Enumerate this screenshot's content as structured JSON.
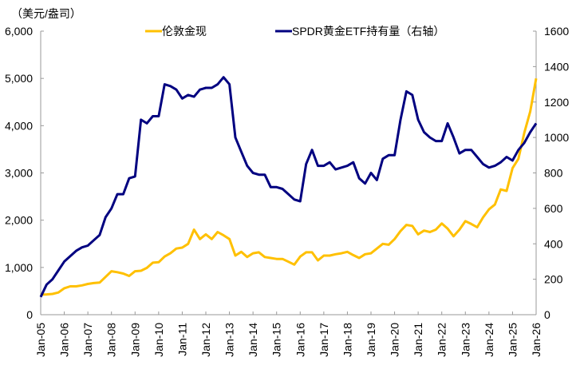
{
  "chart_data": {
    "type": "line",
    "left_unit_label": "（美元/盎司）",
    "y_left": {
      "ylim": [
        0,
        6000
      ],
      "ticks": [
        "0",
        "1,000",
        "2,000",
        "3,000",
        "4,000",
        "5,000",
        "6,000"
      ]
    },
    "y_right": {
      "ylim": [
        0,
        1600
      ],
      "ticks": [
        "0",
        "200",
        "400",
        "600",
        "800",
        "1000",
        "1200",
        "1400",
        "1600"
      ]
    },
    "x_ticks": [
      "Jan-05",
      "Jan-06",
      "Jan-07",
      "Jan-08",
      "Jan-09",
      "Jan-10",
      "Jan-11",
      "Jan-12",
      "Jan-13",
      "Jan-14",
      "Jan-15",
      "Jan-16",
      "Jan-17",
      "Jan-18",
      "Jan-19",
      "Jan-20",
      "Jan-21",
      "Jan-22",
      "Jan-23",
      "Jan-24",
      "Jan-25",
      "Jan-26"
    ],
    "legend_position": "top",
    "grid": false,
    "series": [
      {
        "name": "伦敦金现",
        "axis": "left",
        "color": "#FFC000",
        "values": [
          425,
          430,
          440,
          470,
          560,
          600,
          600,
          620,
          650,
          670,
          680,
          800,
          920,
          900,
          870,
          820,
          920,
          930,
          990,
          1100,
          1110,
          1230,
          1300,
          1400,
          1420,
          1500,
          1800,
          1600,
          1700,
          1600,
          1750,
          1680,
          1600,
          1250,
          1330,
          1220,
          1300,
          1320,
          1220,
          1200,
          1180,
          1180,
          1120,
          1060,
          1230,
          1320,
          1320,
          1150,
          1250,
          1250,
          1280,
          1300,
          1330,
          1260,
          1200,
          1280,
          1300,
          1400,
          1500,
          1480,
          1600,
          1770,
          1900,
          1880,
          1700,
          1780,
          1750,
          1800,
          1930,
          1820,
          1660,
          1800,
          1980,
          1920,
          1850,
          2060,
          2230,
          2330,
          2650,
          2620,
          3100,
          3300,
          3850,
          4300,
          5000
        ]
      },
      {
        "name": "SPDR黄金ETF持有量（右轴）",
        "axis": "right",
        "color": "#000080",
        "values": [
          100,
          170,
          200,
          250,
          300,
          330,
          360,
          380,
          390,
          420,
          450,
          550,
          600,
          680,
          680,
          770,
          780,
          1100,
          1080,
          1120,
          1120,
          1300,
          1290,
          1270,
          1220,
          1240,
          1230,
          1270,
          1280,
          1280,
          1300,
          1340,
          1300,
          1000,
          920,
          840,
          800,
          790,
          790,
          720,
          720,
          710,
          680,
          650,
          640,
          850,
          930,
          840,
          840,
          860,
          820,
          830,
          840,
          860,
          770,
          740,
          800,
          760,
          880,
          900,
          900,
          1100,
          1260,
          1240,
          1100,
          1030,
          1000,
          980,
          980,
          1080,
          1000,
          910,
          930,
          930,
          890,
          850,
          830,
          840,
          860,
          890,
          870,
          930,
          970,
          1030,
          1080
        ]
      }
    ],
    "x_values_note_free": "quarterly from Jan-05 to Jan-26"
  }
}
